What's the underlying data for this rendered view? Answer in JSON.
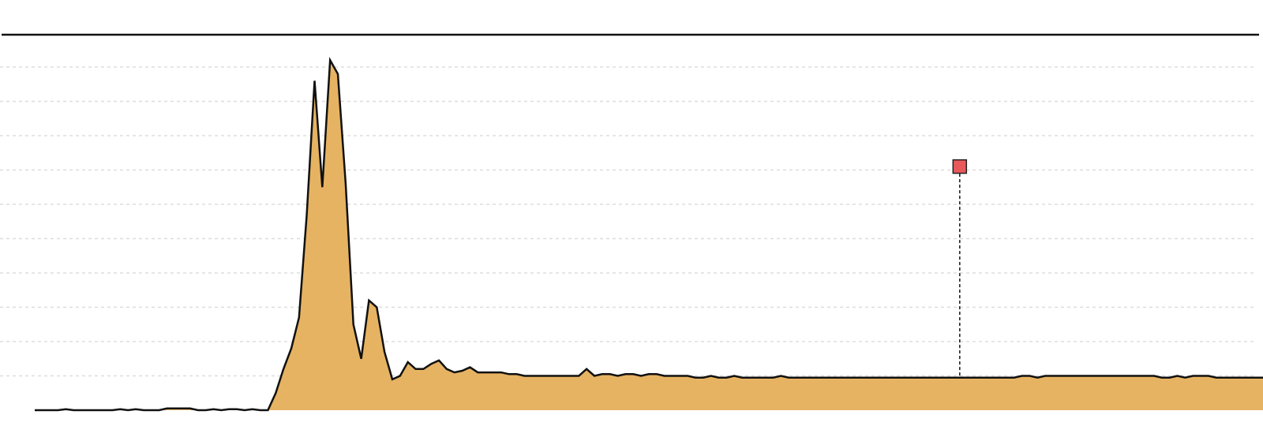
{
  "chart_data": {
    "type": "area",
    "title": "",
    "xlabel": "",
    "ylabel": "",
    "x_range": [
      0,
      157
    ],
    "ylim": [
      0,
      100
    ],
    "grid": true,
    "grid_style": "dotted-horizontal",
    "top_rule": true,
    "colors": {
      "fill": "#E6B363",
      "line": "#111111",
      "grid": "#DDDDDD",
      "rule": "#111111",
      "marker_fill": "#E8595C",
      "marker_stroke": "#222222"
    },
    "series": [
      {
        "values": [
          0,
          0,
          0,
          0,
          0.3,
          0,
          0,
          0,
          0,
          0,
          0,
          0.3,
          0,
          0.3,
          0,
          0,
          0,
          0.5,
          0.5,
          0.5,
          0.5,
          0,
          0,
          0.3,
          0,
          0.3,
          0.3,
          0,
          0.3,
          0,
          0,
          5,
          12,
          18,
          27,
          57,
          96,
          65,
          102,
          98,
          66,
          25,
          15,
          32,
          30,
          17,
          9,
          10,
          14,
          12,
          12,
          13.5,
          14.5,
          12,
          11,
          11.5,
          12.5,
          11,
          11,
          11,
          11,
          10.5,
          10.5,
          10,
          10,
          10,
          10,
          10,
          10,
          10,
          10,
          12,
          10,
          10.5,
          10.5,
          10,
          10.5,
          10.5,
          10,
          10.5,
          10.5,
          10,
          10,
          10,
          10,
          9.5,
          9.5,
          10,
          9.5,
          9.5,
          10,
          9.5,
          9.5,
          9.5,
          9.5,
          9.5,
          10,
          9.5,
          9.5,
          9.5,
          9.5,
          9.5,
          9.5,
          9.5,
          9.5,
          9.5,
          9.5,
          9.5,
          9.5,
          9.5,
          9.5,
          9.5,
          9.5,
          9.5,
          9.5,
          9.5,
          9.5,
          9.5,
          9.5,
          9.5,
          9.5,
          9.5,
          9.5,
          9.5,
          9.5,
          9.5,
          9.5,
          10,
          10,
          9.5,
          10,
          10,
          10,
          10,
          10,
          10,
          10,
          10,
          10,
          10,
          10,
          10,
          10,
          10,
          10,
          9.5,
          9.5,
          10,
          9.5,
          10,
          10,
          10,
          9.5,
          9.5,
          9.5,
          9.5,
          9.5,
          9.5,
          9.5,
          9.5,
          9.5,
          10,
          10,
          10,
          10,
          9.5,
          9.5
        ]
      }
    ],
    "markers": [
      {
        "x": 119,
        "y": 71
      }
    ]
  }
}
